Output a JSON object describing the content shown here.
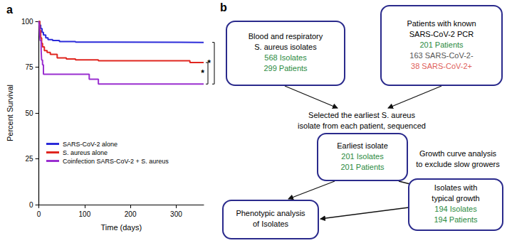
{
  "chart_data": {
    "type": "line",
    "title": "a",
    "x_label": "Time (days)",
    "y_label": "Percent Survival",
    "xlim": [
      0,
      360
    ],
    "xticks": [
      0,
      100,
      200,
      300
    ],
    "ylim": [
      0,
      100
    ],
    "yticks": [
      0,
      25,
      50,
      75,
      100
    ],
    "grid": false,
    "legend": "lower left",
    "line_style": "step",
    "series": [
      {
        "name": "SARS-CoV-2 alone",
        "color": "#2b2bd9",
        "x": [
          0,
          2,
          4,
          7,
          10,
          15,
          20,
          30,
          45,
          80,
          150,
          360
        ],
        "values": [
          100,
          98,
          96,
          94,
          92.5,
          91,
          90,
          89.5,
          89,
          88.7,
          88.5,
          88.5
        ]
      },
      {
        "name": "S. aureus alone",
        "color": "#e0261f",
        "x": [
          0,
          2,
          4,
          6,
          8,
          12,
          18,
          25,
          40,
          60,
          80,
          130,
          330,
          360
        ],
        "values": [
          100,
          95,
          91,
          88,
          86,
          84,
          83,
          82,
          80,
          79.5,
          79,
          78.5,
          77.5,
          77.5
        ]
      },
      {
        "name": "Coinfection SARS-CoV-2 + S. aureus",
        "color": "#9a2fd0",
        "x": [
          0,
          1,
          2,
          3,
          5,
          6,
          8,
          10,
          110,
          130,
          360
        ],
        "values": [
          100,
          97.4,
          92.1,
          89.5,
          84.2,
          78.9,
          76.3,
          71.1,
          68.4,
          65.8,
          65.8
        ]
      }
    ],
    "annotations": [
      {
        "text": "*",
        "between": [
          "SARS-CoV-2 alone",
          "Coinfection SARS-CoV-2 + S. aureus"
        ]
      },
      {
        "text": "*",
        "between": [
          "S. aureus alone",
          "Coinfection SARS-CoV-2 + S. aureus"
        ]
      }
    ]
  },
  "diagram": {
    "label": "b",
    "boxes": [
      {
        "lines": [
          {
            "text": "Blood and respiratory",
            "color": "#000000"
          },
          {
            "text": "S. aureus isolates",
            "color": "#000000"
          },
          {
            "text": "568 Isolates",
            "color": "#2a8a3e"
          },
          {
            "text": "299 Patients",
            "color": "#2a8a3e"
          }
        ]
      },
      {
        "lines": [
          {
            "text": "Patients with known",
            "color": "#000000"
          },
          {
            "text": "SARS-CoV-2 PCR",
            "color": "#000000"
          },
          {
            "text": "201 Patients",
            "color": "#2a8a3e"
          },
          {
            "text": "163 SARS-CoV-2-",
            "color": "#555555"
          },
          {
            "text": "38 SARS-CoV-2+",
            "color": "#e0605a"
          }
        ]
      },
      {
        "lines": [
          {
            "text": "Earliest isolate",
            "color": "#000000"
          },
          {
            "text": "201 Isolates",
            "color": "#2a8a3e"
          },
          {
            "text": "201 Patients",
            "color": "#2a8a3e"
          }
        ]
      },
      {
        "lines": [
          {
            "text": "Isolates with",
            "color": "#000000"
          },
          {
            "text": "typical growth",
            "color": "#000000"
          },
          {
            "text": "194 Isolates",
            "color": "#2a8a3e"
          },
          {
            "text": "194 Patients",
            "color": "#2a8a3e"
          }
        ]
      },
      {
        "lines": [
          {
            "text": "Phenotypic analysis",
            "color": "#000000"
          },
          {
            "text": "of Isolates",
            "color": "#000000"
          }
        ]
      }
    ],
    "notes": [
      {
        "lines": [
          "Selected the earliest S. aureus",
          "isolate from each patient, sequenced"
        ]
      },
      {
        "lines": [
          "Growth curve analysis",
          "to exclude slow growers"
        ]
      }
    ]
  }
}
